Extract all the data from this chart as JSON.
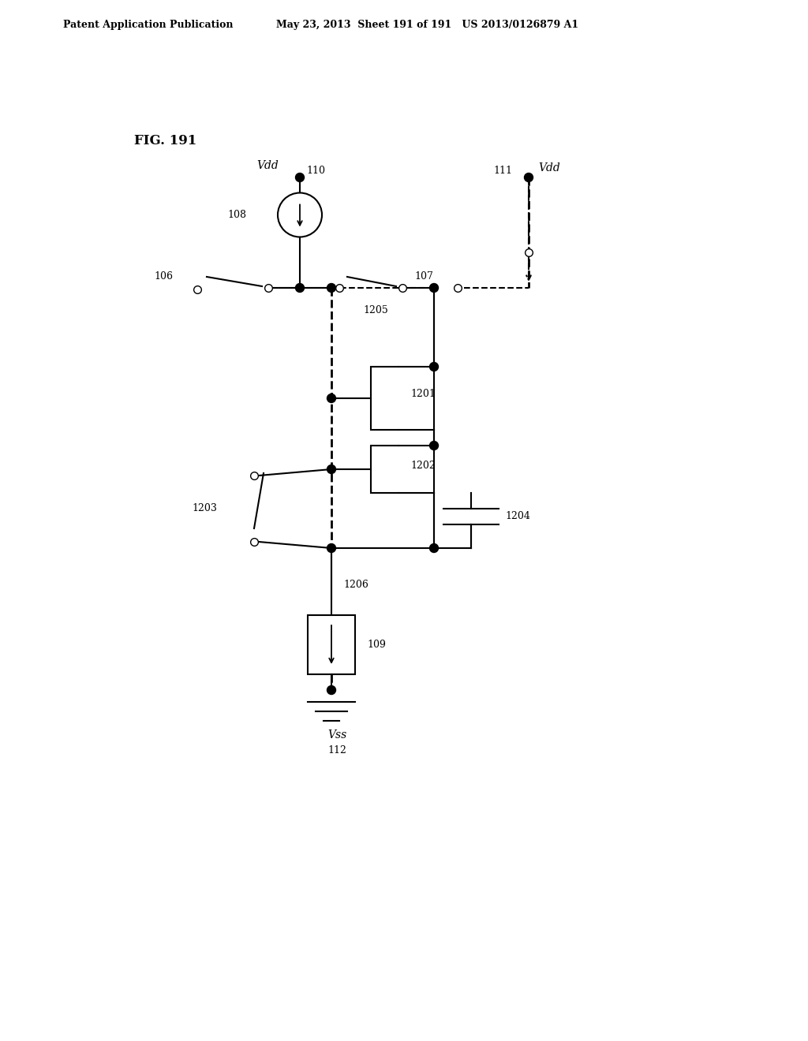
{
  "title": "FIG. 191",
  "header_left": "Patent Application Publication",
  "header_right": "May 23, 2013  Sheet 191 of 191   US 2013/0126879 A1",
  "labels": {
    "vdd_left": "Vdd",
    "vdd_right": "Vdd",
    "vss": "Vss",
    "fig": "FIG. 191",
    "n108": "108",
    "n110": "110",
    "n111": "111",
    "n112": "112",
    "n106": "106",
    "n107": "107",
    "n109": "109",
    "n1201": "1201",
    "n1202": "1202",
    "n1203": "1203",
    "n1204": "1204",
    "n1205": "1205",
    "n1206": "1206"
  },
  "bg_color": "#ffffff",
  "line_color": "#000000"
}
